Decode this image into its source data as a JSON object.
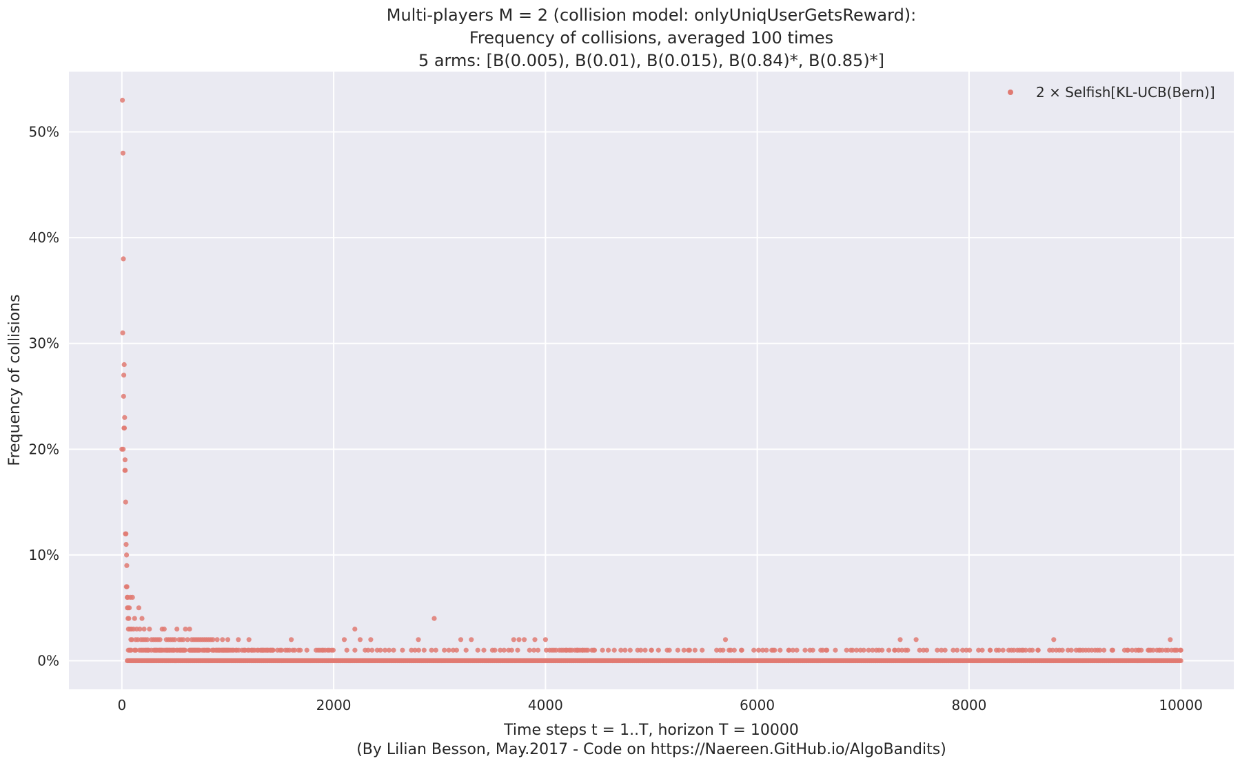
{
  "chart_data": {
    "type": "scatter",
    "title_lines": [
      "Multi-players M = 2 (collision model: onlyUniqUserGetsReward):",
      "Frequency of collisions, averaged 100 times",
      "5 arms: [B(0.005), B(0.01), B(0.015), B(0.84)*, B(0.85)*]"
    ],
    "xlabel": "Time steps t = 1..T, horizon T = 10000",
    "caption": "(By Lilian Besson, May.2017 - Code on https://Naereen.GitHub.io/AlgoBandits)",
    "ylabel": "Frequency of collisions",
    "xlim": [
      -500,
      10500
    ],
    "ylim": [
      -0.027,
      0.557
    ],
    "x_ticks": [
      0,
      2000,
      4000,
      6000,
      8000,
      10000
    ],
    "x_tick_labels": [
      "0",
      "2000",
      "4000",
      "6000",
      "8000",
      "10000"
    ],
    "y_ticks": [
      0,
      0.1,
      0.2,
      0.3,
      0.4,
      0.5
    ],
    "y_tick_labels": [
      "0%",
      "10%",
      "20%",
      "30%",
      "40%",
      "50%"
    ],
    "grid": true,
    "legend_position": "top-right",
    "colors": {
      "series": "#e07a72",
      "plot_bg": "#eaeaf2",
      "grid": "#ffffff"
    },
    "series": [
      {
        "name": "2 × Selfish[KL-UCB(Bern)]",
        "baseline": {
          "x_start": 50,
          "x_end": 10000,
          "step": 10,
          "y": 0
        },
        "points": [
          [
            0,
            0.2
          ],
          [
            5,
            0.53
          ],
          [
            8,
            0.31
          ],
          [
            10,
            0.48
          ],
          [
            12,
            0.2
          ],
          [
            14,
            0.38
          ],
          [
            16,
            0.25
          ],
          [
            18,
            0.27
          ],
          [
            20,
            0.22
          ],
          [
            22,
            0.28
          ],
          [
            24,
            0.22
          ],
          [
            26,
            0.23
          ],
          [
            28,
            0.18
          ],
          [
            30,
            0.19
          ],
          [
            32,
            0.18
          ],
          [
            34,
            0.12
          ],
          [
            36,
            0.15
          ],
          [
            38,
            0.12
          ],
          [
            40,
            0.11
          ],
          [
            42,
            0.07
          ],
          [
            44,
            0.1
          ],
          [
            46,
            0.09
          ],
          [
            48,
            0.07
          ],
          [
            50,
            0.06
          ],
          [
            52,
            0.05
          ],
          [
            55,
            0.06
          ],
          [
            58,
            0.04
          ],
          [
            60,
            0.05
          ],
          [
            62,
            0.03
          ],
          [
            65,
            0.04
          ],
          [
            70,
            0.05
          ],
          [
            75,
            0.03
          ],
          [
            80,
            0.06
          ],
          [
            85,
            0.02
          ],
          [
            90,
            0.03
          ],
          [
            95,
            0.02
          ],
          [
            100,
            0.06
          ],
          [
            110,
            0.03
          ],
          [
            120,
            0.04
          ],
          [
            130,
            0.02
          ],
          [
            140,
            0.03
          ],
          [
            150,
            0.02
          ],
          [
            160,
            0.05
          ],
          [
            170,
            0.03
          ],
          [
            180,
            0.02
          ],
          [
            190,
            0.04
          ],
          [
            200,
            0.02
          ],
          [
            210,
            0.03
          ],
          [
            220,
            0.02
          ],
          [
            240,
            0.02
          ],
          [
            260,
            0.03
          ],
          [
            280,
            0.02
          ],
          [
            300,
            0.02
          ],
          [
            320,
            0.02
          ],
          [
            340,
            0.02
          ],
          [
            360,
            0.02
          ],
          [
            380,
            0.03
          ],
          [
            400,
            0.03
          ],
          [
            420,
            0.02
          ],
          [
            440,
            0.02
          ],
          [
            460,
            0.02
          ],
          [
            480,
            0.02
          ],
          [
            500,
            0.02
          ],
          [
            520,
            0.03
          ],
          [
            540,
            0.02
          ],
          [
            560,
            0.02
          ],
          [
            580,
            0.02
          ],
          [
            600,
            0.03
          ],
          [
            620,
            0.02
          ],
          [
            640,
            0.03
          ],
          [
            660,
            0.02
          ],
          [
            680,
            0.02
          ],
          [
            700,
            0.02
          ],
          [
            720,
            0.02
          ],
          [
            740,
            0.02
          ],
          [
            760,
            0.02
          ],
          [
            780,
            0.02
          ],
          [
            800,
            0.02
          ],
          [
            820,
            0.02
          ],
          [
            840,
            0.02
          ],
          [
            860,
            0.02
          ],
          [
            900,
            0.02
          ],
          [
            950,
            0.02
          ],
          [
            1000,
            0.02
          ],
          [
            1100,
            0.02
          ],
          [
            1200,
            0.02
          ],
          [
            1600,
            0.02
          ],
          [
            2100,
            0.02
          ],
          [
            2200,
            0.03
          ],
          [
            2250,
            0.02
          ],
          [
            2350,
            0.02
          ],
          [
            2800,
            0.02
          ],
          [
            2950,
            0.04
          ],
          [
            3200,
            0.02
          ],
          [
            3300,
            0.02
          ],
          [
            3700,
            0.02
          ],
          [
            3750,
            0.02
          ],
          [
            3800,
            0.02
          ],
          [
            3900,
            0.02
          ],
          [
            4000,
            0.02
          ],
          [
            5700,
            0.02
          ],
          [
            7350,
            0.02
          ],
          [
            7500,
            0.02
          ],
          [
            8800,
            0.02
          ],
          [
            9900,
            0.02
          ]
        ],
        "ones_ranges": [
          [
            60,
            1450,
            8
          ],
          [
            1450,
            2000,
            18
          ],
          [
            2000,
            4000,
            40
          ],
          [
            4000,
            4450,
            18
          ],
          [
            4450,
            6000,
            60
          ],
          [
            6000,
            8000,
            40
          ],
          [
            8000,
            10000,
            28
          ]
        ],
        "ones_extra": [
          [
            4100,
            0.01
          ],
          [
            4150,
            0.01
          ],
          [
            4200,
            0.01
          ],
          [
            4250,
            0.01
          ],
          [
            4300,
            0.01
          ],
          [
            4350,
            0.01
          ],
          [
            4400,
            0.01
          ],
          [
            4650,
            0.01
          ],
          [
            4800,
            0.01
          ],
          [
            4900,
            0.01
          ],
          [
            5000,
            0.01
          ],
          [
            5150,
            0.01
          ],
          [
            5250,
            0.01
          ],
          [
            5350,
            0.01
          ],
          [
            5650,
            0.01
          ],
          [
            5750,
            0.01
          ],
          [
            5850,
            0.01
          ],
          [
            6150,
            0.01
          ],
          [
            6300,
            0.01
          ],
          [
            6600,
            0.01
          ],
          [
            6650,
            0.01
          ],
          [
            6900,
            0.01
          ],
          [
            7150,
            0.01
          ],
          [
            7300,
            0.01
          ],
          [
            7400,
            0.01
          ],
          [
            7600,
            0.01
          ],
          [
            7700,
            0.01
          ],
          [
            7850,
            0.01
          ],
          [
            8200,
            0.01
          ],
          [
            8400,
            0.01
          ],
          [
            8500,
            0.01
          ],
          [
            8650,
            0.01
          ],
          [
            9050,
            0.01
          ],
          [
            9350,
            0.01
          ],
          [
            9500,
            0.01
          ],
          [
            9600,
            0.01
          ],
          [
            9700,
            0.01
          ],
          [
            9800,
            0.01
          ],
          [
            9950,
            0.01
          ],
          [
            10000,
            0.01
          ]
        ]
      }
    ]
  }
}
